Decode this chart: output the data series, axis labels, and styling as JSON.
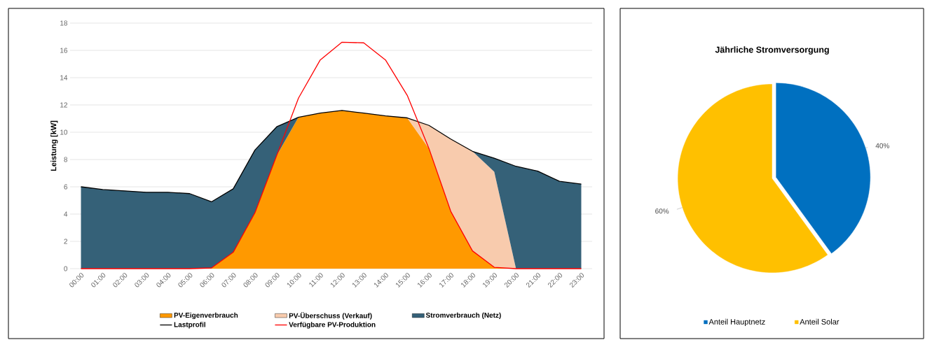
{
  "chart_data": [
    {
      "type": "area",
      "stacked": true,
      "ylabel": "Leistung [kW]",
      "categories": [
        "00:00",
        "01:00",
        "02:00",
        "03:00",
        "04:00",
        "05:00",
        "06:00",
        "07:00",
        "08:00",
        "09:00",
        "10:00",
        "11:00",
        "12:00",
        "13:00",
        "14:00",
        "15:00",
        "16:00",
        "17:00",
        "18:00",
        "19:00",
        "20:00",
        "21:00",
        "22:00",
        "23:00"
      ],
      "ylim": [
        0,
        18
      ],
      "yticks": [
        0,
        2,
        4,
        6,
        8,
        10,
        12,
        14,
        16,
        18
      ],
      "grid": "y",
      "legend": "bottom",
      "series": [
        {
          "name": "PV-Eigenverbrauch",
          "type": "area",
          "color": "#ff9900",
          "values": [
            0,
            0,
            0,
            0,
            0,
            0,
            0.05,
            1.2,
            4.1,
            8.3,
            11.1,
            11.4,
            11.6,
            11.4,
            11.2,
            11.05,
            8.8,
            4.2,
            1.3,
            0.1,
            0,
            0,
            0,
            0
          ]
        },
        {
          "name": "PV-Überschuss (Verkauf)",
          "type": "area",
          "color": "#f8cbad",
          "values": [
            null,
            null,
            null,
            null,
            null,
            null,
            null,
            null,
            null,
            null,
            null,
            null,
            null,
            null,
            null,
            0,
            1.7,
            5.3,
            7.3,
            7.0,
            0,
            null,
            null,
            null
          ]
        },
        {
          "name": "Stromverbrauch (Netz)",
          "type": "area",
          "color": "#356178",
          "values": [
            6.0,
            5.8,
            5.7,
            5.6,
            5.6,
            5.5,
            4.85,
            4.65,
            4.6,
            2.1,
            0,
            null,
            null,
            null,
            null,
            null,
            null,
            null,
            0,
            1.0,
            7.5,
            7.15,
            6.4,
            6.2
          ]
        },
        {
          "name": "Lastprofil",
          "type": "line",
          "color": "#000000",
          "values": [
            6.0,
            5.8,
            5.7,
            5.6,
            5.6,
            5.5,
            4.9,
            5.85,
            8.7,
            10.4,
            11.1,
            11.4,
            11.6,
            11.4,
            11.2,
            11.05,
            10.5,
            9.5,
            8.6,
            8.1,
            7.5,
            7.15,
            6.4,
            6.2
          ]
        },
        {
          "name": "Verfügbare PV-Produktion",
          "type": "line",
          "color": "#ff0000",
          "values": [
            0,
            0,
            0,
            0,
            0,
            0,
            0.05,
            1.2,
            4.1,
            8.3,
            12.5,
            15.3,
            16.6,
            16.55,
            15.3,
            12.7,
            8.8,
            4.2,
            1.3,
            0.1,
            0,
            0,
            0,
            0
          ]
        }
      ]
    },
    {
      "type": "pie",
      "title": "Jährliche Stromversorgung",
      "legend": "bottom",
      "categories": [
        "Anteil Hauptnetz",
        "Anteil Solar"
      ],
      "values": [
        40,
        60
      ],
      "colors": [
        "#0070c0",
        "#ffc000"
      ],
      "value_labels": [
        "40%",
        "60%"
      ]
    }
  ]
}
